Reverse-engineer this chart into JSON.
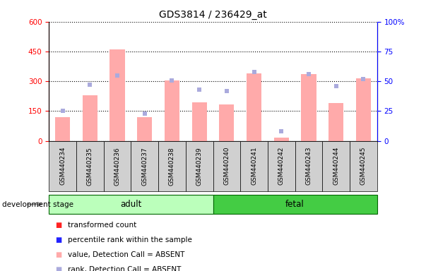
{
  "title": "GDS3814 / 236429_at",
  "samples": [
    "GSM440234",
    "GSM440235",
    "GSM440236",
    "GSM440237",
    "GSM440238",
    "GSM440239",
    "GSM440240",
    "GSM440241",
    "GSM440242",
    "GSM440243",
    "GSM440244",
    "GSM440245"
  ],
  "absent_value": [
    120,
    230,
    460,
    120,
    305,
    195,
    185,
    340,
    15,
    335,
    190,
    315
  ],
  "absent_rank": [
    25,
    47,
    55,
    23,
    51,
    43,
    42,
    58,
    8,
    56,
    46,
    52
  ],
  "ylim_left": [
    0,
    600
  ],
  "ylim_right": [
    0,
    100
  ],
  "yticks_left": [
    0,
    150,
    300,
    450,
    600
  ],
  "yticks_right": [
    0,
    25,
    50,
    75,
    100
  ],
  "n_adult": 6,
  "n_fetal": 6,
  "bar_color_absent": "#ffaaaa",
  "dot_color_absent": "#aaaadd",
  "bar_color_present": "#ff2222",
  "dot_color_present": "#2222ff",
  "adult_bg": "#bbffbb",
  "fetal_bg": "#44cc44",
  "adult_label": "adult",
  "fetal_label": "fetal",
  "development_stage_label": "development stage",
  "label_bar_present": "transformed count",
  "label_dot_present": "percentile rank within the sample",
  "label_bar_absent": "value, Detection Call = ABSENT",
  "label_dot_absent": "rank, Detection Call = ABSENT",
  "title_fontsize": 10,
  "tick_fontsize": 7.5,
  "legend_fontsize": 7.5
}
